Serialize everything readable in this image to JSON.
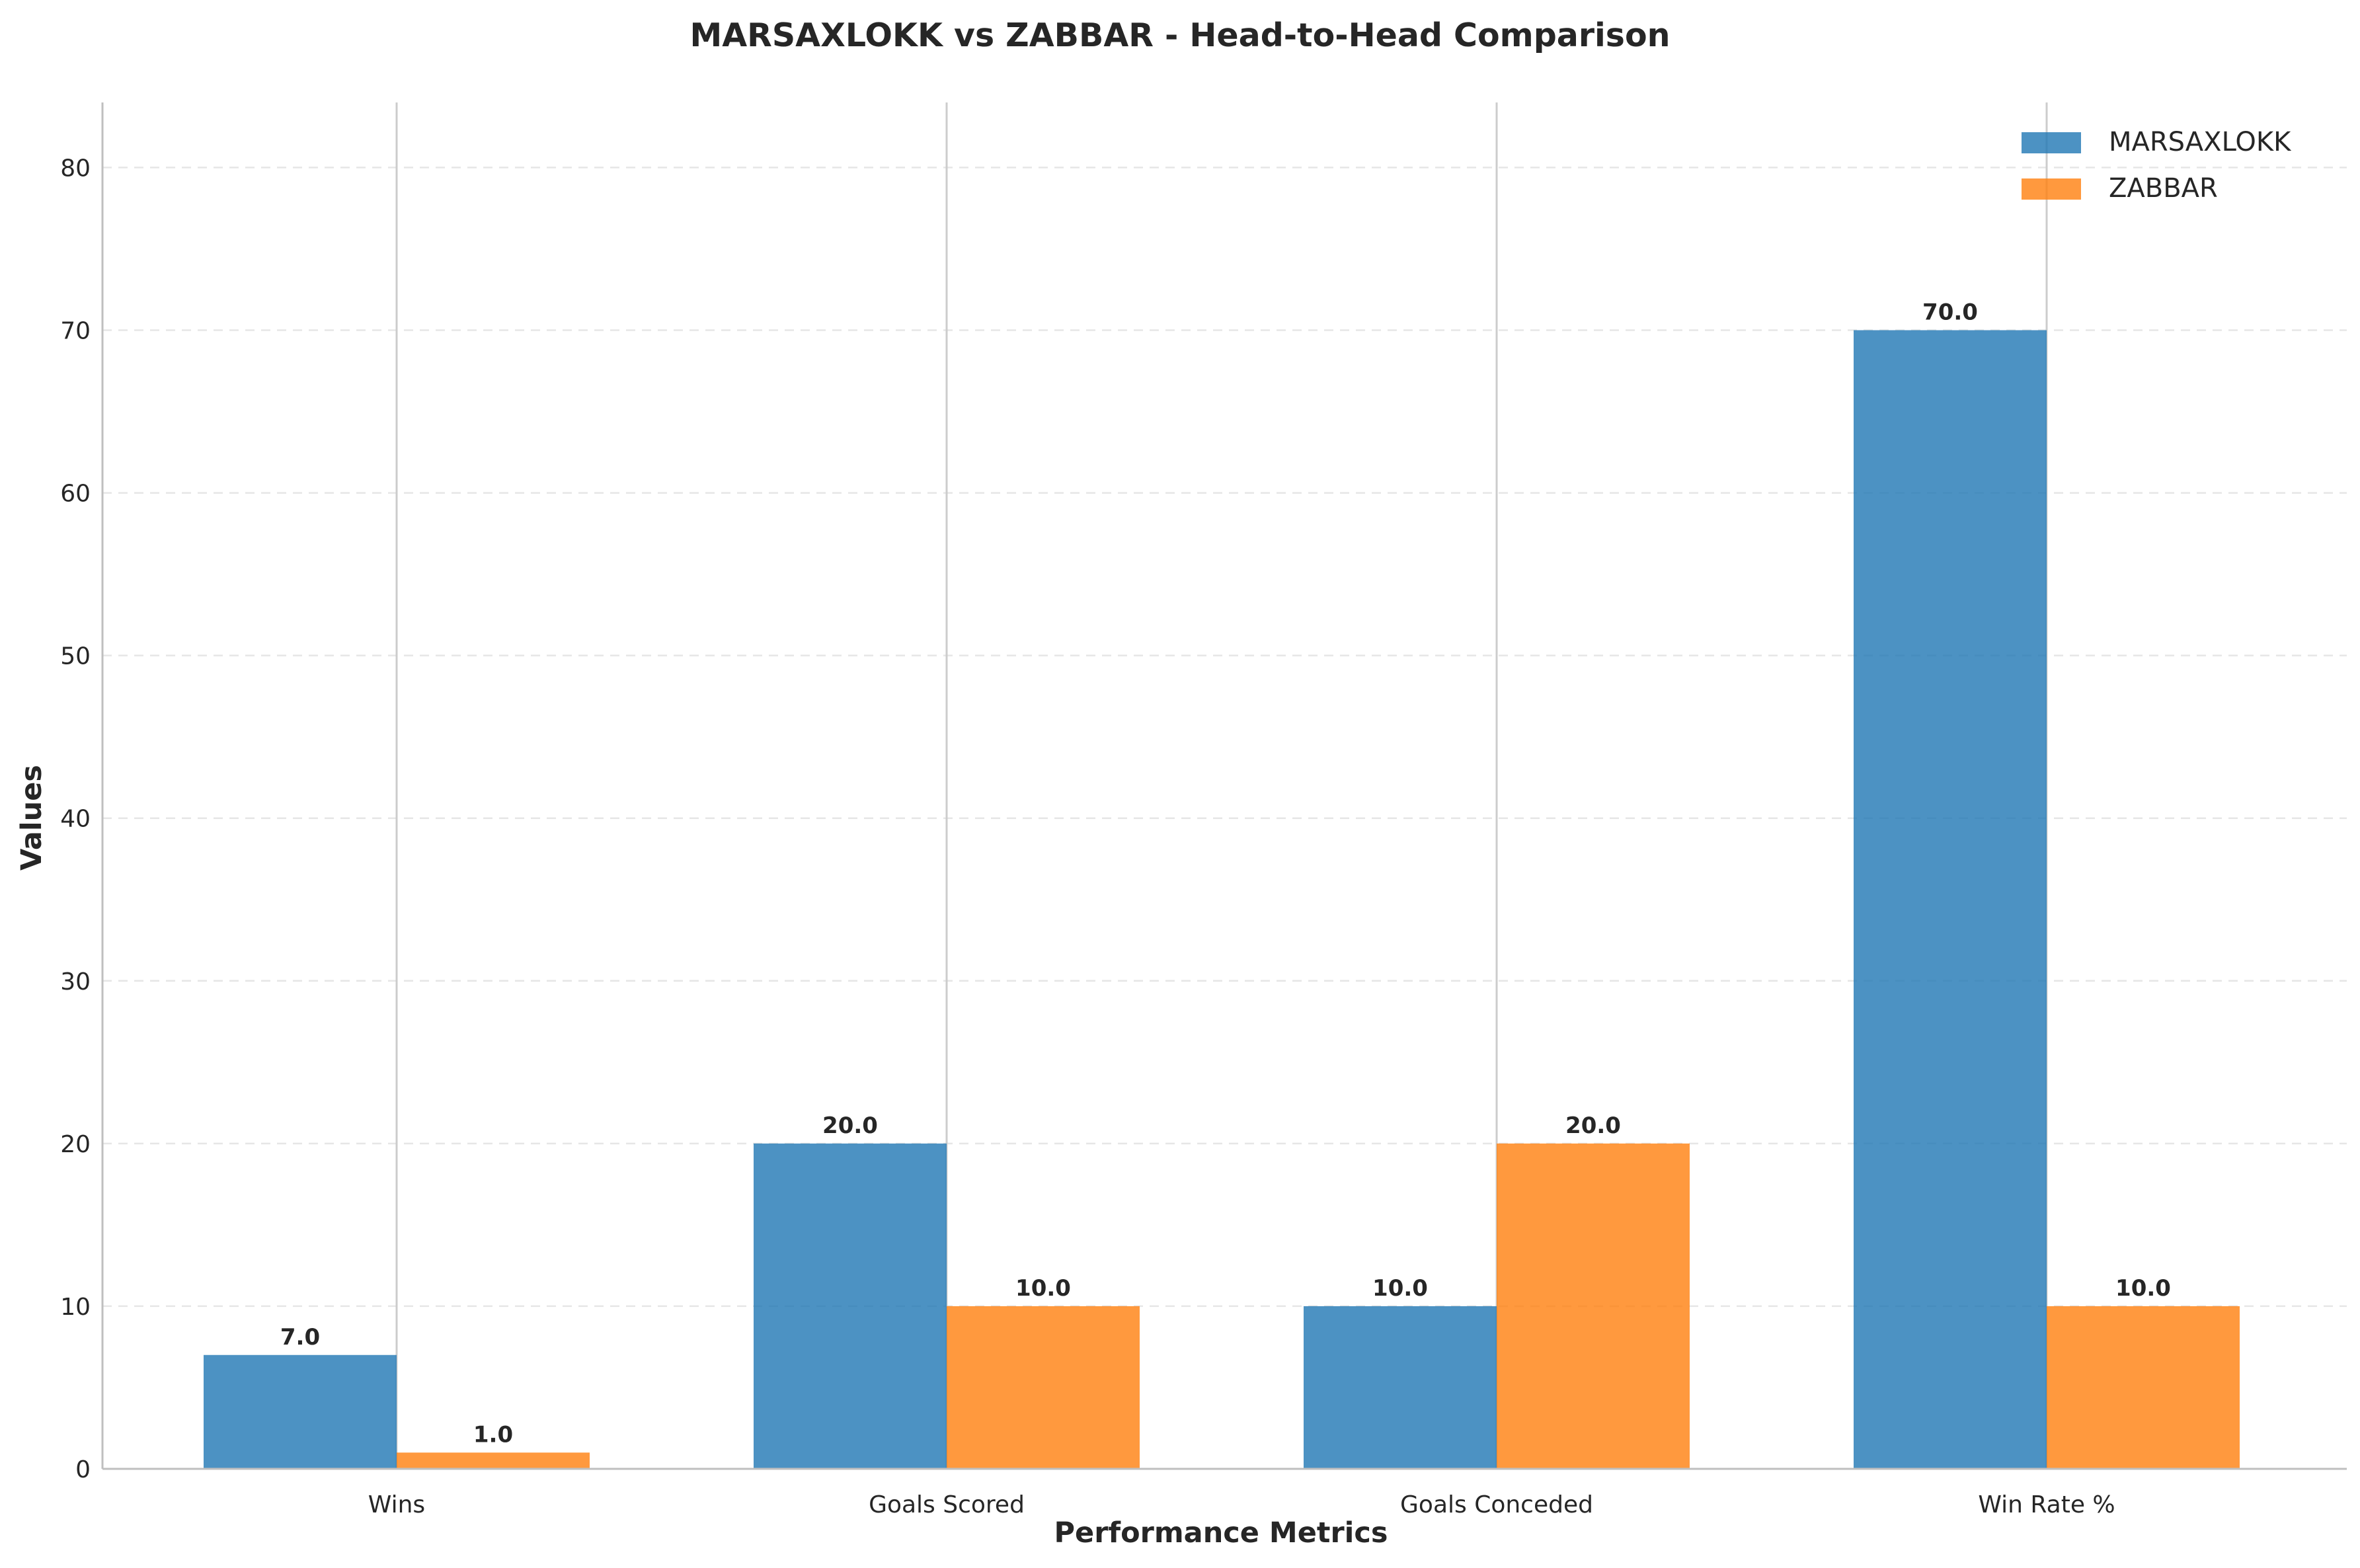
{
  "chart_data": {
    "type": "bar",
    "title": "MARSAXLOKK vs ZABBAR - Head-to-Head Comparison",
    "xlabel": "Performance Metrics",
    "ylabel": "Values",
    "categories": [
      "Wins",
      "Goals Scored",
      "Goals Conceded",
      "Win Rate %"
    ],
    "series": [
      {
        "name": "MARSAXLOKK",
        "values": [
          7.0,
          20.0,
          10.0,
          70.0
        ],
        "color": "#1f77b4",
        "labels": [
          "7.0",
          "20.0",
          "10.0",
          "70.0"
        ]
      },
      {
        "name": "ZABBAR",
        "values": [
          1.0,
          10.0,
          20.0,
          10.0
        ],
        "color": "#ff7f0e",
        "labels": [
          "1.0",
          "10.0",
          "20.0",
          "10.0"
        ]
      }
    ],
    "ylim": [
      0,
      84
    ],
    "yticks": [
      0,
      10,
      20,
      30,
      40,
      50,
      60,
      70,
      80
    ],
    "grid": "horizontal dashed",
    "legend_position": "top-right"
  }
}
